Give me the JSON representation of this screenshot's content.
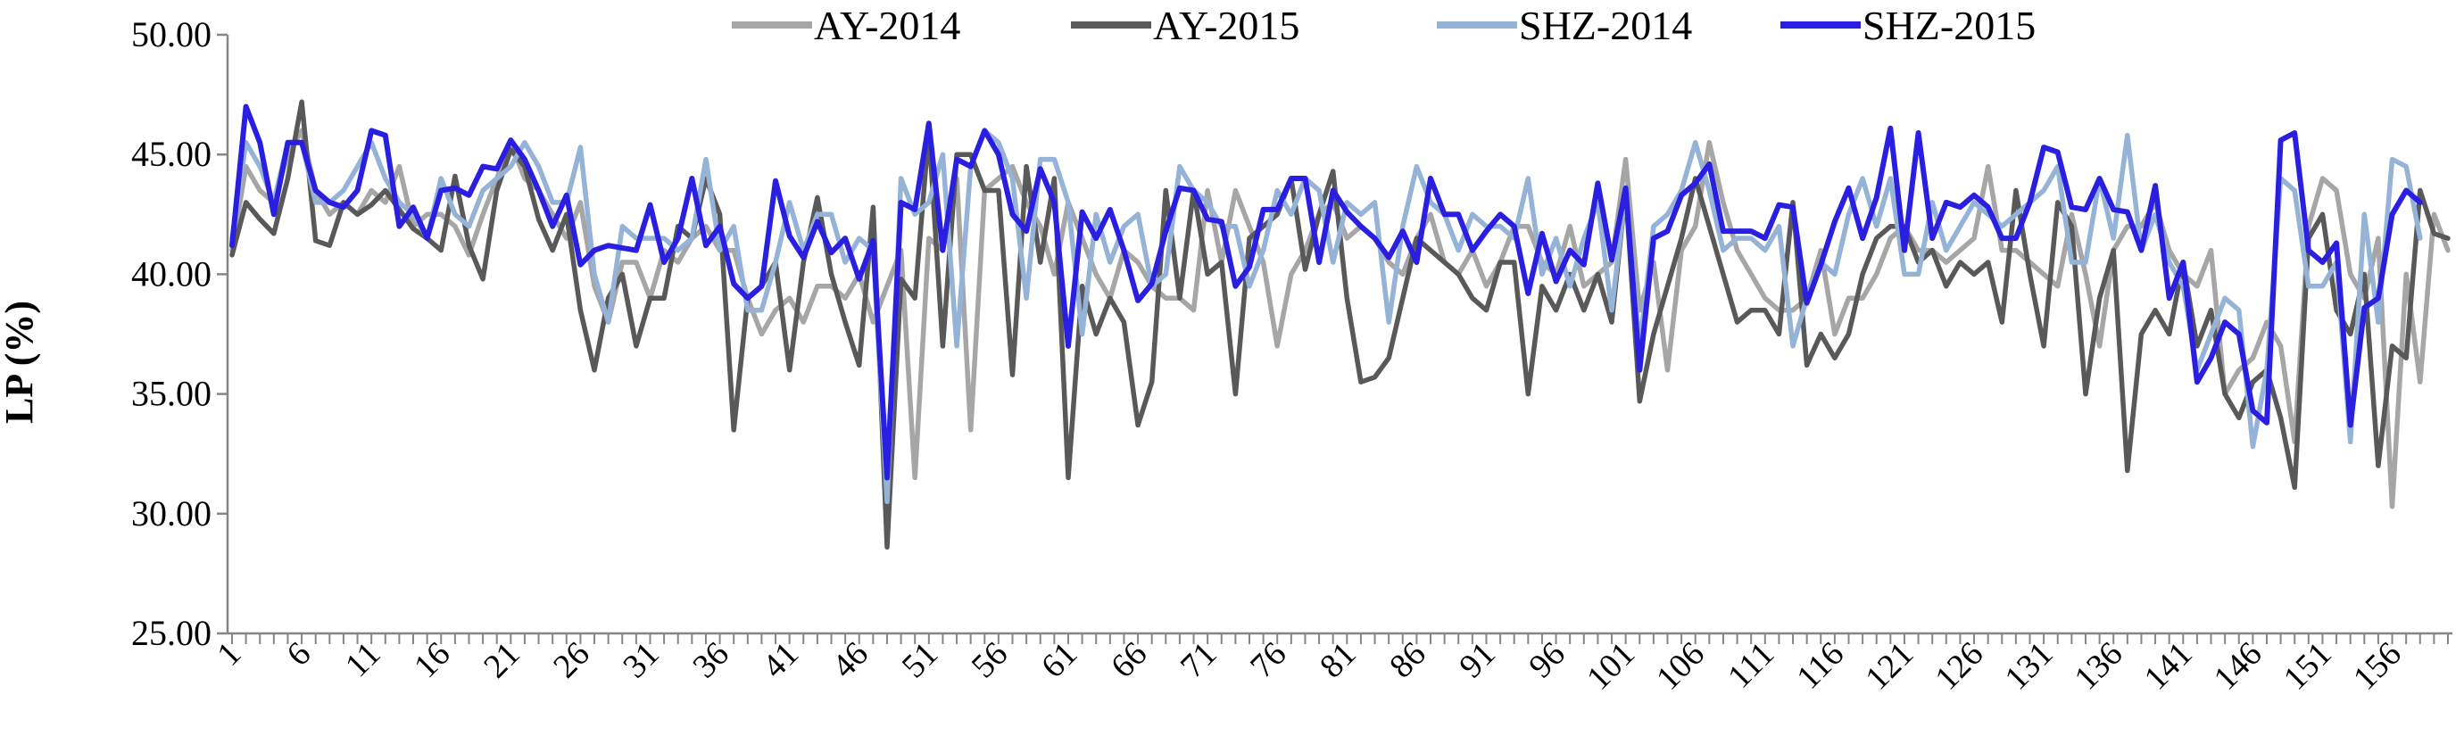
{
  "chart_data": {
    "type": "line",
    "title": "",
    "xlabel": "",
    "ylabel": "LP (%)",
    "ylim": [
      25,
      50
    ],
    "yticks": [
      "25.00",
      "30.00",
      "35.00",
      "40.00",
      "45.00",
      "50.00"
    ],
    "xlim": [
      1,
      160
    ],
    "xticks": [
      1,
      6,
      11,
      16,
      21,
      26,
      31,
      36,
      41,
      46,
      51,
      56,
      61,
      66,
      71,
      76,
      81,
      86,
      91,
      96,
      101,
      106,
      111,
      116,
      121,
      126,
      131,
      136,
      141,
      146,
      151,
      156
    ],
    "grid": false,
    "legend_position": "top",
    "series": [
      {
        "name": "AY-2014",
        "color": "#a6a6a6",
        "values": [
          41.0,
          44.5,
          43.5,
          43.0,
          45.0,
          46.0,
          43.5,
          42.5,
          43.0,
          42.5,
          43.5,
          43.0,
          44.5,
          42.0,
          42.5,
          42.5,
          42.0,
          40.8,
          42.5,
          44.0,
          45.5,
          44.0,
          43.5,
          42.5,
          41.5,
          43.0,
          39.5,
          38.0,
          40.5,
          40.5,
          39.0,
          41.0,
          40.5,
          41.5,
          42.0,
          41.0,
          41.0,
          39.0,
          37.5,
          38.5,
          39.0,
          38.0,
          39.5,
          39.5,
          39.0,
          40.0,
          38.0,
          39.5,
          41.0,
          31.5,
          41.5,
          41.0,
          44.0,
          33.5,
          43.5,
          44.0,
          44.5,
          43.0,
          42.0,
          40.0,
          43.0,
          41.5,
          40.0,
          39.0,
          41.0,
          40.5,
          39.5,
          39.0,
          39.0,
          38.5,
          43.5,
          40.5,
          43.5,
          42.0,
          40.5,
          37.0,
          40.0,
          41.0,
          42.5,
          43.0,
          41.5,
          42.0,
          41.5,
          40.5,
          40.0,
          41.5,
          42.5,
          40.5,
          40.0,
          41.0,
          39.5,
          40.5,
          42.0,
          42.0,
          40.5,
          40.0,
          42.0,
          39.5,
          40.0,
          40.5,
          44.8,
          38.5,
          40.5,
          36.0,
          41.0,
          42.0,
          45.5,
          43.0,
          41.0,
          40.0,
          39.0,
          38.5,
          38.5,
          39.0,
          41.0,
          37.5,
          39.0,
          39.0,
          40.0,
          41.5,
          42.0,
          41.0,
          41.0,
          40.5,
          41.0,
          41.5,
          44.5,
          41.0,
          41.0,
          40.5,
          40.0,
          39.5,
          42.5,
          40.0,
          37.0,
          41.0,
          42.0,
          42.0,
          43.0,
          41.0,
          40.0,
          39.5,
          41.0,
          35.0,
          36.0,
          36.5,
          38.0,
          37.0,
          33.0,
          42.0,
          44.0,
          43.5,
          40.0,
          39.0,
          41.5,
          30.3,
          40.0,
          35.5,
          42.5,
          41.0
        ]
      },
      {
        "name": "AY-2015",
        "color": "#595959",
        "values": [
          40.8,
          43.0,
          42.3,
          41.7,
          44.0,
          47.2,
          41.4,
          41.2,
          43.0,
          42.5,
          42.9,
          43.5,
          42.7,
          41.9,
          41.5,
          41.0,
          44.1,
          41.2,
          39.8,
          43.5,
          45.2,
          44.5,
          42.3,
          41.0,
          42.5,
          38.5,
          36.0,
          39.0,
          40.0,
          37.0,
          39.0,
          39.0,
          42.0,
          41.5,
          44.0,
          42.5,
          33.5,
          39.0,
          39.5,
          40.5,
          36.0,
          40.5,
          43.2,
          40.0,
          38.0,
          36.2,
          42.8,
          28.6,
          39.8,
          39.0,
          46.0,
          37.0,
          45.0,
          45.0,
          43.5,
          43.5,
          35.8,
          44.5,
          40.5,
          44.0,
          31.5,
          39.5,
          37.5,
          39.0,
          38.0,
          33.7,
          35.5,
          43.5,
          39.0,
          43.5,
          40.0,
          40.5,
          35.0,
          41.5,
          42.0,
          42.5,
          44.0,
          40.2,
          42.5,
          44.3,
          39.0,
          35.5,
          35.7,
          36.5,
          39.0,
          41.5,
          41.0,
          40.5,
          40.0,
          39.0,
          38.5,
          40.5,
          40.5,
          35.0,
          39.5,
          38.5,
          40.0,
          38.5,
          40.0,
          38.0,
          43.5,
          34.7,
          37.5,
          39.5,
          41.5,
          44.0,
          42.0,
          40.0,
          38.0,
          38.5,
          38.5,
          37.5,
          43.0,
          36.2,
          37.5,
          36.5,
          37.5,
          40.0,
          41.5,
          42.0,
          42.0,
          40.5,
          41.0,
          39.5,
          40.5,
          40.0,
          40.5,
          38.0,
          43.5,
          40.0,
          37.0,
          43.0,
          42.0,
          35.0,
          39.0,
          41.0,
          31.8,
          37.5,
          38.5,
          37.5,
          40.5,
          37.0,
          38.5,
          35.0,
          34.0,
          35.5,
          36.0,
          34.0,
          31.1,
          41.5,
          42.5,
          38.5,
          37.5,
          40.0,
          32.0,
          37.0,
          36.5,
          43.5,
          41.7,
          41.5
        ]
      },
      {
        "name": "SHZ-2014",
        "color": "#95b3d7",
        "values": [
          41.5,
          45.5,
          44.5,
          43.0,
          45.5,
          45.5,
          43.0,
          43.0,
          43.5,
          44.5,
          45.5,
          44.0,
          43.0,
          42.5,
          41.5,
          44.0,
          42.5,
          42.0,
          43.5,
          44.0,
          44.5,
          45.5,
          44.5,
          43.0,
          43.0,
          45.3,
          40.0,
          38.0,
          42.0,
          41.5,
          41.5,
          41.5,
          41.0,
          41.5,
          44.8,
          41.0,
          42.0,
          38.5,
          38.5,
          40.5,
          43.0,
          41.0,
          42.5,
          42.5,
          40.5,
          41.5,
          41.0,
          30.5,
          44.0,
          42.5,
          43.0,
          45.0,
          37.0,
          44.5,
          46.0,
          45.5,
          44.0,
          39.0,
          44.8,
          44.8,
          43.0,
          37.5,
          42.5,
          40.5,
          42.0,
          42.5,
          39.5,
          40.0,
          44.5,
          43.5,
          43.0,
          42.0,
          42.0,
          39.5,
          41.0,
          43.5,
          42.5,
          44.0,
          43.5,
          40.5,
          43.0,
          42.5,
          43.0,
          38.0,
          42.0,
          44.5,
          43.0,
          42.5,
          41.0,
          42.5,
          42.0,
          42.0,
          41.5,
          44.0,
          40.0,
          41.5,
          39.5,
          41.5,
          43.0,
          38.5,
          43.5,
          37.0,
          42.0,
          42.5,
          43.5,
          45.5,
          43.5,
          41.0,
          41.5,
          41.5,
          41.0,
          42.0,
          37.0,
          39.0,
          40.5,
          40.0,
          42.5,
          44.0,
          42.0,
          44.0,
          40.0,
          40.0,
          43.0,
          41.0,
          42.0,
          43.0,
          42.5,
          42.0,
          42.5,
          43.0,
          43.5,
          44.5,
          40.5,
          40.5,
          44.0,
          41.5,
          45.8,
          41.0,
          42.5,
          40.5,
          39.5,
          36.0,
          37.5,
          39.0,
          38.5,
          32.8,
          36.0,
          44.0,
          43.5,
          39.5,
          39.5,
          40.5,
          33.0,
          42.5,
          38.0,
          44.8,
          44.5,
          41.5
        ]
      },
      {
        "name": "SHZ-2015",
        "color": "#2a1fe0",
        "values": [
          41.2,
          47.0,
          45.5,
          42.5,
          45.5,
          45.5,
          43.5,
          43.0,
          42.8,
          43.5,
          46.0,
          45.8,
          42.0,
          42.8,
          41.5,
          43.5,
          43.6,
          43.3,
          44.5,
          44.4,
          45.6,
          44.8,
          43.5,
          42.0,
          43.3,
          40.4,
          41.0,
          41.2,
          41.1,
          41.0,
          42.9,
          40.5,
          41.5,
          44.0,
          41.2,
          42.0,
          39.6,
          39.0,
          39.5,
          43.9,
          41.6,
          40.7,
          42.2,
          40.9,
          41.5,
          39.8,
          41.4,
          31.5,
          43.0,
          42.7,
          46.3,
          41.0,
          44.8,
          44.5,
          46.0,
          45.0,
          42.5,
          41.8,
          44.4,
          43.0,
          37.0,
          42.6,
          41.5,
          42.7,
          41.0,
          38.9,
          39.6,
          41.8,
          43.6,
          43.5,
          42.3,
          42.2,
          39.5,
          40.3,
          42.7,
          42.7,
          44.0,
          44.0,
          40.5,
          43.5,
          42.6,
          42.0,
          41.5,
          40.7,
          41.8,
          40.5,
          44.0,
          42.5,
          42.5,
          41.0,
          41.8,
          42.5,
          42.0,
          39.2,
          41.7,
          39.7,
          41.0,
          40.4,
          43.8,
          40.6,
          43.6,
          36.0,
          41.5,
          41.8,
          43.3,
          43.8,
          44.6,
          41.8,
          41.8,
          41.8,
          41.5,
          42.9,
          42.8,
          38.8,
          40.4,
          42.2,
          43.6,
          41.5,
          43.2,
          46.1,
          41.0,
          45.9,
          41.5,
          43.0,
          42.8,
          43.3,
          42.8,
          41.5,
          41.5,
          43.0,
          45.3,
          45.1,
          42.8,
          42.7,
          44.0,
          42.7,
          42.6,
          41.0,
          43.7,
          39.0,
          40.5,
          35.5,
          36.5,
          38.0,
          37.5,
          34.3,
          33.8,
          45.6,
          45.9,
          41.0,
          40.5,
          41.3,
          33.7,
          38.6,
          39.0,
          42.5,
          43.5,
          43.0
        ]
      }
    ]
  }
}
